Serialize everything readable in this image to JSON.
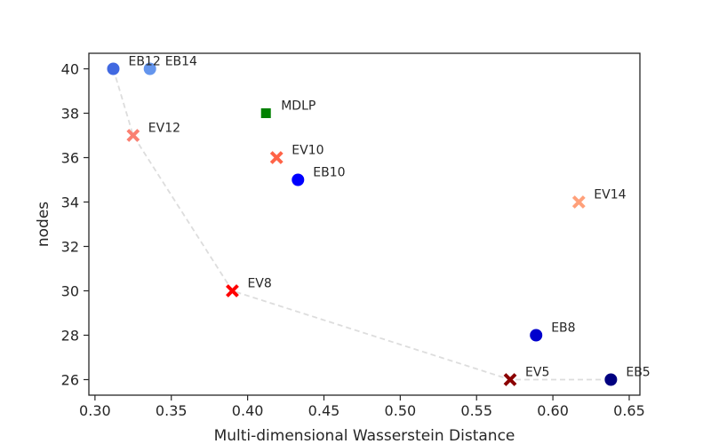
{
  "chart_data": {
    "type": "scatter",
    "title": "",
    "xlabel": "Multi-dimensional Wasserstein Distance",
    "ylabel": "nodes",
    "xlim": [
      0.296,
      0.657
    ],
    "ylim": [
      25.3,
      40.7
    ],
    "xticks": [
      "0.30",
      "0.35",
      "0.40",
      "0.45",
      "0.50",
      "0.55",
      "0.60",
      "0.65"
    ],
    "yticks": [
      "26",
      "28",
      "30",
      "32",
      "34",
      "36",
      "38",
      "40"
    ],
    "grid": false,
    "legend": "none",
    "points": [
      {
        "label": "EB12",
        "x": 0.312,
        "y": 40,
        "marker": "circle",
        "color": "#4169e1"
      },
      {
        "label": "EB14",
        "x": 0.336,
        "y": 40,
        "marker": "circle",
        "color": "#6495ed"
      },
      {
        "label": "MDLP",
        "x": 0.412,
        "y": 38,
        "marker": "square",
        "color": "#008000"
      },
      {
        "label": "EV12",
        "x": 0.325,
        "y": 37,
        "marker": "x",
        "color": "#fa8072"
      },
      {
        "label": "EV10",
        "x": 0.419,
        "y": 36,
        "marker": "x",
        "color": "#ff6347"
      },
      {
        "label": "EB10",
        "x": 0.433,
        "y": 35,
        "marker": "circle",
        "color": "#0000ff"
      },
      {
        "label": "EV14",
        "x": 0.617,
        "y": 34,
        "marker": "x",
        "color": "#ffa07a"
      },
      {
        "label": "EV8",
        "x": 0.39,
        "y": 30,
        "marker": "x",
        "color": "#ff0000"
      },
      {
        "label": "EB8",
        "x": 0.589,
        "y": 28,
        "marker": "circle",
        "color": "#0000cd"
      },
      {
        "label": "EV5",
        "x": 0.572,
        "y": 26,
        "marker": "x",
        "color": "#8b0000"
      },
      {
        "label": "EB5",
        "x": 0.638,
        "y": 26,
        "marker": "circle",
        "color": "#000080"
      }
    ],
    "pareto_front": {
      "color": "#dddddd",
      "points": [
        [
          0.312,
          40
        ],
        [
          0.325,
          37
        ],
        [
          0.39,
          30
        ],
        [
          0.572,
          26
        ],
        [
          0.638,
          26
        ]
      ]
    }
  }
}
